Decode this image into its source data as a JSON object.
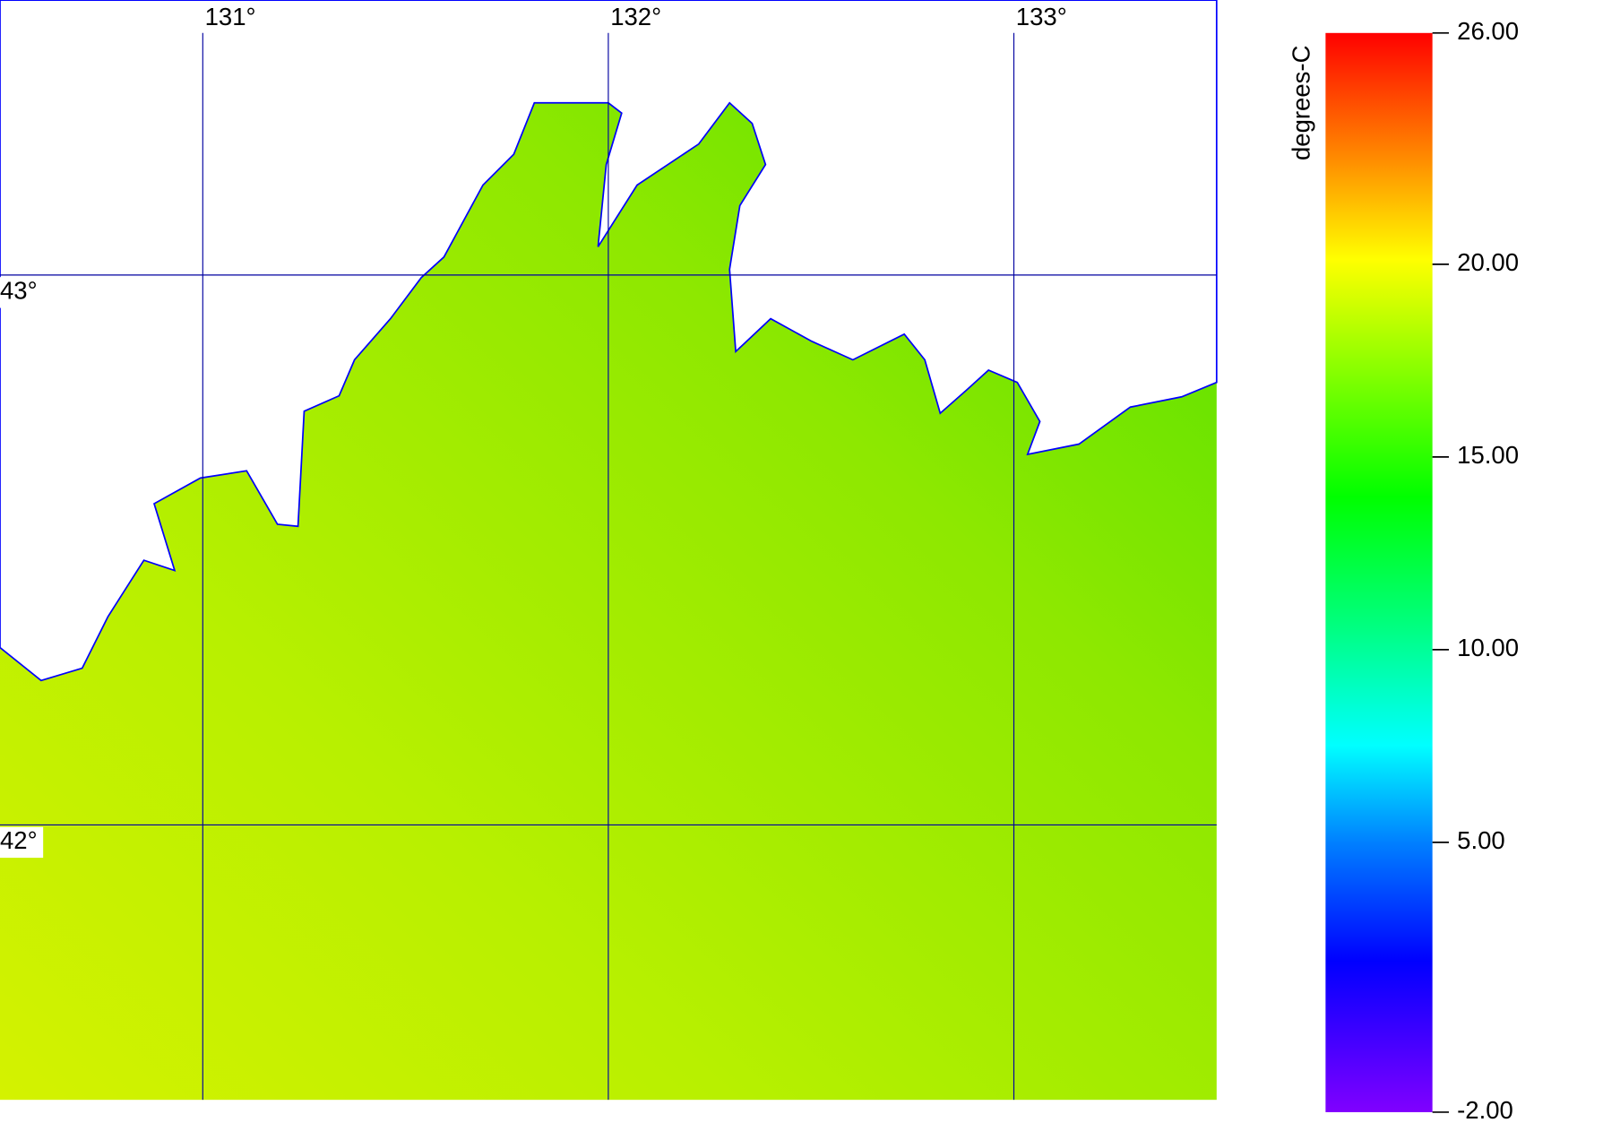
{
  "map": {
    "lonlim": [
      130.5,
      133.5
    ],
    "latlim": [
      41.5,
      43.5
    ],
    "lon_ticks": [
      {
        "value": 131,
        "label": "131°"
      },
      {
        "value": 132,
        "label": "132°"
      },
      {
        "value": 133,
        "label": "133°"
      }
    ],
    "lat_ticks": [
      {
        "value": 43,
        "label": "43°"
      },
      {
        "value": 42,
        "label": "42°"
      }
    ],
    "grid_color": "#0000a0"
  },
  "colorbar": {
    "label": "degrees-C",
    "range": [
      -2,
      26
    ],
    "ticks": [
      {
        "value": 26,
        "label": "26.00"
      },
      {
        "value": 20,
        "label": "20.00"
      },
      {
        "value": 15,
        "label": "15.00"
      },
      {
        "value": 10,
        "label": "10.00"
      },
      {
        "value": 5,
        "label": "5.00"
      },
      {
        "value": -2,
        "label": "-2.00"
      }
    ]
  }
}
